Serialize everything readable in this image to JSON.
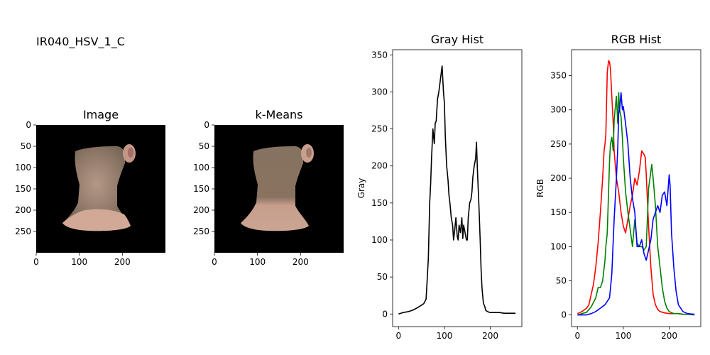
{
  "suptitle": "IR040_HSV_1_C",
  "chart_data": [
    {
      "type": "image",
      "title": "Image",
      "xticks": [
        0,
        100,
        200
      ],
      "yticks": [
        0,
        50,
        100,
        150,
        200,
        250
      ],
      "xlim": [
        0,
        300
      ],
      "ylim": [
        300,
        0
      ]
    },
    {
      "type": "image",
      "title": "k-Means",
      "xticks": [
        0,
        100,
        200
      ],
      "yticks": [
        0,
        50,
        100,
        150,
        200,
        250
      ],
      "xlim": [
        0,
        300
      ],
      "ylim": [
        300,
        0
      ]
    },
    {
      "type": "line",
      "title": "Gray Hist",
      "xlabel": "",
      "ylabel": "Gray",
      "xlim": [
        -12.8,
        268.8
      ],
      "ylim": [
        -17,
        357
      ],
      "xticks": [
        0,
        100,
        200
      ],
      "yticks": [
        0,
        50,
        100,
        150,
        200,
        250,
        300,
        350
      ],
      "series": [
        {
          "color": "#000000",
          "x": [
            0,
            10,
            20,
            30,
            40,
            50,
            55,
            60,
            62,
            65,
            68,
            70,
            72,
            75,
            78,
            80,
            82,
            85,
            88,
            90,
            92,
            95,
            98,
            100,
            102,
            105,
            108,
            110,
            112,
            115,
            118,
            120,
            122,
            125,
            128,
            130,
            132,
            135,
            138,
            140,
            142,
            145,
            148,
            150,
            152,
            155,
            158,
            160,
            162,
            165,
            168,
            170,
            172,
            175,
            178,
            180,
            182,
            185,
            188,
            190,
            192,
            195,
            200,
            210,
            220,
            230,
            240,
            255
          ],
          "values": [
            0,
            2,
            3,
            5,
            8,
            12,
            14,
            20,
            40,
            75,
            150,
            175,
            210,
            250,
            230,
            258,
            260,
            290,
            300,
            310,
            320,
            335,
            300,
            285,
            240,
            200,
            180,
            160,
            150,
            130,
            120,
            100,
            110,
            130,
            105,
            100,
            120,
            110,
            130,
            102,
            120,
            110,
            100,
            100,
            130,
            150,
            155,
            165,
            185,
            200,
            210,
            232,
            195,
            150,
            100,
            60,
            35,
            15,
            10,
            5,
            4,
            3,
            2,
            2,
            2,
            1,
            1,
            1
          ]
        }
      ]
    },
    {
      "type": "line",
      "title": "RGB Hist",
      "xlabel": "",
      "ylabel": "RGB",
      "xlim": [
        -12.8,
        268.8
      ],
      "ylim": [
        -17,
        388
      ],
      "xticks": [
        0,
        100,
        200
      ],
      "yticks": [
        0,
        50,
        100,
        150,
        200,
        250,
        300,
        350
      ],
      "series": [
        {
          "color": "#ff0000",
          "x": [
            0,
            10,
            20,
            25,
            30,
            35,
            40,
            45,
            50,
            55,
            58,
            60,
            62,
            65,
            68,
            70,
            72,
            75,
            78,
            80,
            85,
            90,
            95,
            100,
            105,
            110,
            115,
            120,
            125,
            130,
            135,
            140,
            145,
            148,
            150,
            155,
            160,
            165,
            170,
            175,
            180,
            190,
            200,
            210,
            220,
            230,
            240,
            255
          ],
          "values": [
            2,
            5,
            10,
            15,
            30,
            45,
            70,
            105,
            150,
            200,
            240,
            250,
            265,
            355,
            372,
            370,
            360,
            320,
            280,
            240,
            200,
            180,
            150,
            130,
            120,
            140,
            160,
            175,
            200,
            190,
            210,
            240,
            235,
            230,
            205,
            130,
            70,
            30,
            15,
            8,
            5,
            3,
            2,
            2,
            2,
            1,
            1,
            1
          ]
        },
        {
          "color": "#008000",
          "x": [
            0,
            10,
            20,
            30,
            40,
            45,
            50,
            55,
            60,
            62,
            65,
            70,
            72,
            75,
            78,
            80,
            82,
            85,
            88,
            90,
            92,
            95,
            98,
            100,
            105,
            110,
            115,
            120,
            125,
            130,
            135,
            140,
            145,
            150,
            155,
            160,
            162,
            165,
            170,
            175,
            180,
            185,
            190,
            195,
            200,
            210,
            220,
            230,
            240,
            255
          ],
          "values": [
            0,
            2,
            4,
            12,
            25,
            40,
            40,
            50,
            80,
            100,
            120,
            225,
            250,
            260,
            240,
            285,
            300,
            320,
            280,
            325,
            300,
            290,
            260,
            230,
            180,
            150,
            125,
            100,
            140,
            105,
            100,
            100,
            95,
            100,
            185,
            210,
            220,
            200,
            160,
            100,
            70,
            40,
            20,
            10,
            5,
            2,
            2,
            1,
            1,
            0
          ]
        },
        {
          "color": "#0000ff",
          "x": [
            0,
            20,
            30,
            40,
            50,
            60,
            70,
            75,
            80,
            85,
            88,
            90,
            92,
            95,
            98,
            100,
            105,
            110,
            115,
            120,
            125,
            130,
            135,
            140,
            145,
            150,
            155,
            160,
            165,
            170,
            175,
            180,
            185,
            190,
            195,
            200,
            202,
            205,
            210,
            215,
            220,
            230,
            240,
            255
          ],
          "values": [
            0,
            0,
            2,
            5,
            10,
            15,
            25,
            60,
            140,
            200,
            245,
            295,
            300,
            325,
            300,
            305,
            280,
            250,
            200,
            170,
            150,
            100,
            100,
            110,
            90,
            80,
            95,
            110,
            140,
            150,
            160,
            150,
            175,
            180,
            160,
            205,
            190,
            120,
            70,
            35,
            15,
            5,
            2,
            1
          ]
        }
      ]
    }
  ]
}
